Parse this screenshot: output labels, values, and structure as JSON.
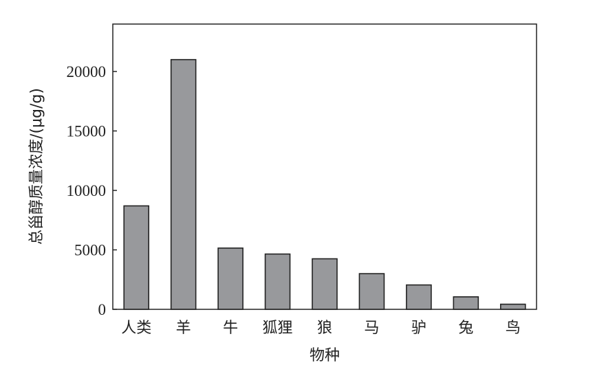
{
  "chart_data": {
    "type": "bar",
    "title": "",
    "xlabel": "物种",
    "ylabel": "总甾醇质量浓度/(μg/g)",
    "categories": [
      "人类",
      "羊",
      "牛",
      "狐狸",
      "狼",
      "马",
      "驴",
      "兔",
      "鸟"
    ],
    "values": [
      8700,
      21000,
      5150,
      4650,
      4250,
      3000,
      2050,
      1050,
      430
    ],
    "ylim": [
      0,
      23000
    ],
    "yticks": [
      0,
      5000,
      10000,
      15000,
      20000
    ],
    "grid": false,
    "bar_color": "#98999c",
    "edge_color": "#222222"
  }
}
